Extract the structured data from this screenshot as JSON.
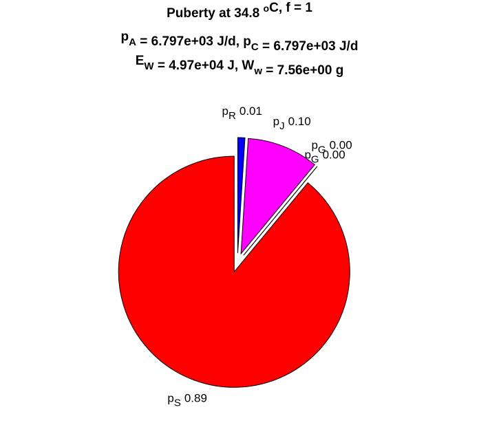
{
  "chart_data": {
    "type": "pie",
    "title": [
      [
        {
          "text": "Puberty at 34.8 "
        },
        {
          "sup": "o"
        },
        {
          "text": "C, f = 1"
        }
      ],
      [
        {
          "text": "p"
        },
        {
          "sub": "A"
        },
        {
          "text": " = 6.797e+03 J/d,  p"
        },
        {
          "sub": "C"
        },
        {
          "text": " = 6.797e+03 J/d"
        }
      ],
      [
        {
          "text": "E"
        },
        {
          "sub": "W"
        },
        {
          "text": " = 4.97e+04 J, W"
        },
        {
          "sub": "w"
        },
        {
          "text": " = 7.56e+00 g"
        }
      ]
    ],
    "categories": [
      {
        "base": "p",
        "sub": "S"
      },
      {
        "base": "p",
        "sub": "G"
      },
      {
        "base": "p",
        "sub": "G"
      },
      {
        "base": "p",
        "sub": "J"
      },
      {
        "base": "p",
        "sub": "R"
      }
    ],
    "values": [
      0.89,
      0.0,
      0.0,
      0.1,
      0.01
    ],
    "value_labels": [
      "0.89",
      "0.00",
      "0.00",
      "0.10",
      "0.01"
    ],
    "colors": [
      "#ff0000",
      "#00ff00",
      "#00ff00",
      "#ff00ff",
      "#0000ff"
    ],
    "exploded": true
  }
}
